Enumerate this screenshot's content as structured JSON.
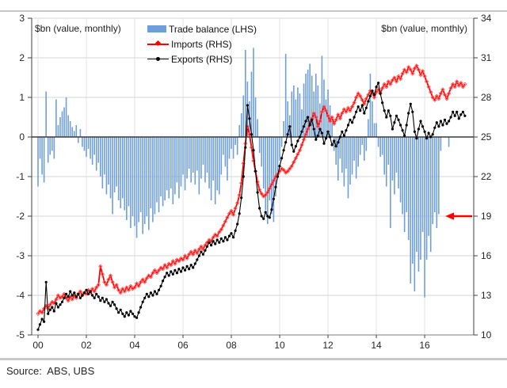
{
  "chart": {
    "left_axis_title": "$bn (value, monthly)",
    "right_axis_title": "$bn (value, monthly)",
    "legend": [
      {
        "label": "Trade balance (LHS)",
        "swatch": "bar",
        "color": "#6F9FD8"
      },
      {
        "label": "Imports (RHS)",
        "swatch": "line",
        "color": "#FF0000",
        "marker_color": "#FF5A5A"
      },
      {
        "label": "Exports (RHS)",
        "swatch": "line",
        "color": "#000000",
        "marker_color": "#000000"
      }
    ],
    "source": "Source:  ABS, UBS"
  },
  "chart_data": {
    "type": "combo-bar-line",
    "frequency": "monthly",
    "x_start": "2000-01",
    "x_tick_labels": [
      "00",
      "02",
      "04",
      "06",
      "08",
      "10",
      "12",
      "14",
      "16"
    ],
    "months_per_tick": 24,
    "grid": true,
    "legend_position": "top-center",
    "left_axis": {
      "title": "$bn (value, monthly)",
      "min": -5,
      "max": 3,
      "ticks": [
        3,
        2,
        1,
        0,
        -1,
        -2,
        -3,
        -4,
        -5
      ]
    },
    "right_axis": {
      "title": "$bn (value, monthly)",
      "min": 10,
      "max": 34,
      "ticks": [
        34,
        31,
        28,
        25,
        22,
        19,
        16,
        13,
        10
      ]
    },
    "annotation_arrow": {
      "direction": "left",
      "at_right_axis_value": 19,
      "color": "#FF0000"
    },
    "series": [
      {
        "name": "Trade balance (LHS)",
        "type": "bar",
        "axis": "left",
        "color": "#6F9FD8",
        "values": [
          -1.25,
          -0.55,
          -0.95,
          -1.15,
          1.15,
          -0.65,
          -0.45,
          -0.35,
          -0.55,
          0.95,
          0.3,
          0.5,
          0.65,
          0.75,
          1.0,
          0.55,
          0.4,
          0.25,
          0.15,
          0.3,
          -0.15,
          0.2,
          -0.25,
          -0.35,
          -0.5,
          -0.3,
          -0.55,
          -0.7,
          -0.45,
          -0.85,
          -0.65,
          -1.0,
          -1.3,
          -0.95,
          -1.45,
          -1.2,
          -1.55,
          -1.95,
          -1.4,
          -1.25,
          -1.6,
          -1.8,
          -1.55,
          -1.85,
          -2.1,
          -1.75,
          -2.3,
          -2.0,
          -2.25,
          -2.55,
          -2.15,
          -1.9,
          -2.45,
          -2.2,
          -2.0,
          -2.35,
          -1.8,
          -2.15,
          -1.95,
          -1.65,
          -1.9,
          -1.5,
          -1.75,
          -1.6,
          -1.35,
          -1.55,
          -1.3,
          -1.7,
          -1.45,
          -1.15,
          -1.55,
          -1.25,
          -0.95,
          -1.35,
          -1.05,
          -0.8,
          -1.15,
          -0.9,
          -1.2,
          -0.85,
          -1.45,
          -1.05,
          -0.7,
          -1.15,
          -0.9,
          -1.3,
          -1.6,
          -1.1,
          -1.7,
          -1.35,
          -1.45,
          -0.95,
          -0.45,
          -0.75,
          -1.1,
          -0.55,
          -0.3,
          -0.55,
          -0.2,
          -0.45,
          0.3,
          0.6,
          1.05,
          2.2,
          1.4,
          0.9,
          1.65,
          2.25,
          1.0,
          0.45,
          -0.4,
          -0.75,
          -1.3,
          -1.85,
          -2.2,
          -1.6,
          -1.95,
          -2.15,
          -1.5,
          -1.0,
          -0.6,
          -0.25,
          0.4,
          2.1,
          0.9,
          0.55,
          1.15,
          1.3,
          0.95,
          1.25,
          1.1,
          0.7,
          1.35,
          1.6,
          1.7,
          1.85,
          1.55,
          1.15,
          1.6,
          1.3,
          0.85,
          2.05,
          1.45,
          0.95,
          1.2,
          0.8,
          0.4,
          -0.35,
          -0.7,
          -1.1,
          -0.55,
          -0.9,
          -1.25,
          -0.8,
          -1.55,
          -1.2,
          -0.95,
          -0.6,
          -1.05,
          -0.75,
          -0.45,
          -0.2,
          -0.6,
          -0.35,
          0.45,
          1.6,
          0.9,
          0.35,
          0.35,
          -0.25,
          -0.5,
          -0.45,
          -0.95,
          -1.25,
          -0.7,
          -2.3,
          -1.1,
          -1.45,
          -0.9,
          -1.3,
          -1.65,
          -1.95,
          -2.4,
          -1.9,
          -2.6,
          -3.7,
          -3.2,
          -3.9,
          -2.9,
          -3.4,
          -3.1,
          -2.4,
          -4.05,
          -3.1,
          -2.5,
          -2.9,
          -2.2,
          -1.9,
          -2.3,
          -1.95,
          -0.35,
          null,
          null,
          null,
          -0.25,
          null,
          null,
          null,
          null,
          null,
          null,
          null,
          null
        ]
      },
      {
        "name": "Imports (RHS)",
        "type": "line",
        "axis": "right",
        "color": "#FF0000",
        "marker": "open-diamond",
        "marker_color": "#FF5A5A",
        "values": [
          11.6,
          11.8,
          11.7,
          12.0,
          12.2,
          12.0,
          12.3,
          12.5,
          12.4,
          12.7,
          13.0,
          12.8,
          12.9,
          13.1,
          12.8,
          12.6,
          12.9,
          12.7,
          13.0,
          12.8,
          13.1,
          13.3,
          13.0,
          13.2,
          13.1,
          13.4,
          13.2,
          13.5,
          13.3,
          13.6,
          13.8,
          15.2,
          14.6,
          14.0,
          13.8,
          14.2,
          14.5,
          14.0,
          13.6,
          13.8,
          13.4,
          13.2,
          13.5,
          13.3,
          13.6,
          13.4,
          13.7,
          13.5,
          13.6,
          13.9,
          13.7,
          14.0,
          14.2,
          14.0,
          14.3,
          14.5,
          14.4,
          14.7,
          14.9,
          14.7,
          14.9,
          15.1,
          15.0,
          15.3,
          15.1,
          15.4,
          15.3,
          15.6,
          15.4,
          15.7,
          15.6,
          15.8,
          15.7,
          16.0,
          15.8,
          16.1,
          16.3,
          16.1,
          16.4,
          16.2,
          16.5,
          16.7,
          16.5,
          16.8,
          17.0,
          17.2,
          17.1,
          17.4,
          17.6,
          17.5,
          17.8,
          18.0,
          18.3,
          18.6,
          18.9,
          19.2,
          19.4,
          19.1,
          19.6,
          20.0,
          20.6,
          21.5,
          23.0,
          24.5,
          25.8,
          25.2,
          24.2,
          23.2,
          22.4,
          21.6,
          21.0,
          20.7,
          20.5,
          20.6,
          20.8,
          21.1,
          21.4,
          21.7,
          22.0,
          22.2,
          22.4,
          22.6,
          22.5,
          22.3,
          22.4,
          22.6,
          22.8,
          23.1,
          23.4,
          23.7,
          24.0,
          24.4,
          24.8,
          25.2,
          25.6,
          26.0,
          26.4,
          26.8,
          26.5,
          25.8,
          26.2,
          26.9,
          27.3,
          27.0,
          26.6,
          26.2,
          26.5,
          26.0,
          26.3,
          26.7,
          26.4,
          26.8,
          27.1,
          26.9,
          27.2,
          27.0,
          27.3,
          27.6,
          28.0,
          28.3,
          28.1,
          27.8,
          27.5,
          27.9,
          28.2,
          28.5,
          28.3,
          28.0,
          28.4,
          28.6,
          28.3,
          28.7,
          29.0,
          28.8,
          29.2,
          29.0,
          29.3,
          29.5,
          29.2,
          29.6,
          29.4,
          29.8,
          30.1,
          29.9,
          30.3,
          30.1,
          29.8,
          30.2,
          30.4,
          30.1,
          29.7,
          30.0,
          29.6,
          29.2,
          28.8,
          28.4,
          28.0,
          27.8,
          28.1,
          27.9,
          28.3,
          28.6,
          28.2,
          27.9,
          28.3,
          28.7,
          29.0,
          28.8,
          29.2,
          28.9,
          29.1,
          28.8,
          29.0
        ]
      },
      {
        "name": "Exports (RHS)",
        "type": "line",
        "axis": "right",
        "color": "#000000",
        "marker": "filled-dot",
        "marker_color": "#000000",
        "values": [
          10.4,
          10.8,
          11.2,
          11.0,
          14.0,
          11.6,
          11.9,
          12.1,
          11.8,
          12.4,
          12.1,
          12.3,
          12.5,
          12.8,
          13.1,
          12.9,
          13.3,
          13.0,
          13.2,
          12.9,
          13.1,
          12.8,
          13.0,
          13.2,
          13.4,
          13.1,
          13.3,
          13.0,
          12.8,
          13.1,
          12.9,
          12.6,
          12.8,
          12.5,
          12.7,
          12.4,
          12.2,
          12.5,
          12.3,
          12.0,
          11.7,
          11.9,
          11.6,
          11.4,
          11.7,
          11.5,
          11.8,
          11.6,
          11.4,
          11.3,
          11.7,
          12.1,
          12.5,
          12.8,
          13.1,
          12.9,
          13.2,
          13.0,
          13.3,
          13.1,
          13.4,
          13.7,
          14.1,
          14.4,
          14.7,
          14.5,
          14.8,
          14.6,
          14.9,
          14.7,
          15.0,
          14.8,
          15.1,
          14.9,
          15.2,
          15.0,
          15.3,
          15.1,
          15.4,
          15.7,
          16.0,
          16.3,
          16.1,
          16.4,
          16.7,
          17.0,
          16.8,
          17.1,
          16.9,
          17.2,
          17.0,
          17.3,
          17.1,
          17.4,
          17.2,
          17.5,
          17.7,
          17.4,
          17.9,
          18.4,
          19.2,
          20.4,
          22.0,
          24.2,
          27.4,
          26.4,
          25.2,
          24.0,
          22.4,
          20.8,
          19.6,
          19.0,
          18.8,
          19.3,
          19.0,
          18.9,
          19.5,
          20.3,
          21.2,
          22.0,
          22.8,
          23.4,
          24.0,
          24.6,
          25.2,
          25.8,
          24.4,
          23.9,
          24.3,
          24.7,
          25.0,
          25.4,
          25.8,
          26.2,
          26.5,
          25.9,
          26.3,
          25.6,
          24.8,
          25.1,
          25.6,
          25.3,
          24.5,
          24.9,
          25.4,
          25.0,
          24.4,
          24.7,
          24.3,
          24.6,
          25.0,
          25.4,
          25.1,
          25.5,
          25.9,
          26.3,
          26.1,
          26.5,
          26.9,
          27.3,
          27.0,
          27.4,
          26.8,
          27.2,
          27.7,
          28.1,
          28.5,
          28.2,
          28.8,
          29.1,
          28.3,
          27.6,
          27.0,
          26.5,
          27.0,
          26.6,
          25.6,
          26.1,
          26.6,
          26.3,
          25.9,
          25.5,
          25.1,
          25.9,
          26.8,
          27.5,
          26.9,
          25.4,
          24.9,
          25.6,
          26.2,
          25.8,
          25.4,
          24.9,
          25.3,
          25.0,
          25.2,
          25.7,
          26.1,
          25.8,
          26.2,
          25.9,
          26.3,
          26.0,
          26.2,
          26.5,
          26.9,
          26.6,
          26.9,
          26.4,
          26.7,
          26.9,
          26.6
        ]
      }
    ]
  }
}
